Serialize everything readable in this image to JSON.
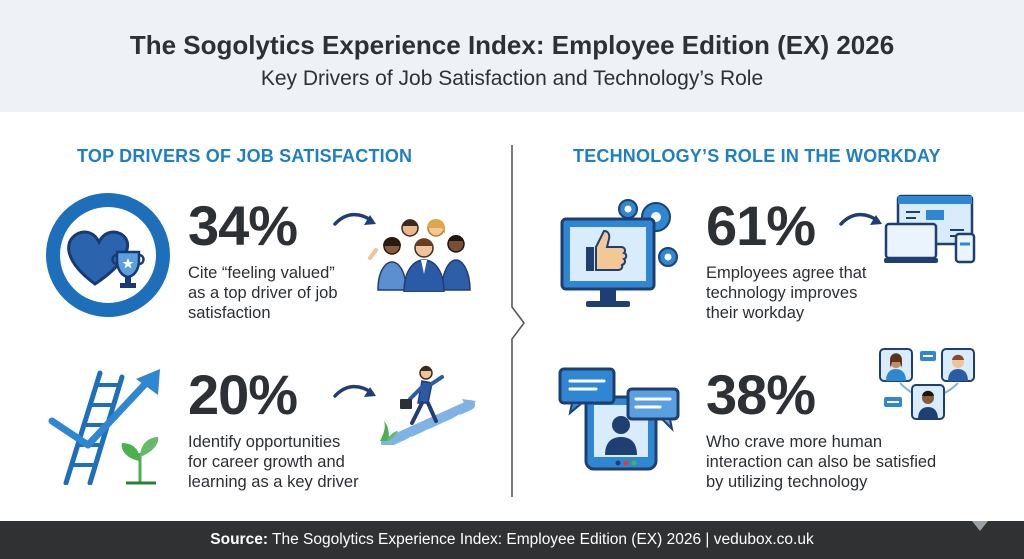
{
  "header": {
    "title": "The Sogolytics Experience Index: Employee Edition (EX) 2026",
    "subtitle": "Key Drivers of Job Satisfaction and Technology’s Role"
  },
  "left_section": {
    "heading": "TOP DRIVERS OF JOB SATISFACTION",
    "stats": [
      {
        "value": "34%",
        "description_lines": [
          "Cite “feeling valued”",
          "as a top driver of job",
          "satisfaction"
        ]
      },
      {
        "value": "20%",
        "description_lines": [
          "Identify opportunities",
          "for career growth and",
          "learning as a key driver"
        ]
      }
    ]
  },
  "right_section": {
    "heading": "TECHNOLOGY’S ROLE IN THE WORKDAY",
    "stats": [
      {
        "value": "61%",
        "description_lines": [
          "Employees agree that",
          "technology improves",
          "their workday"
        ]
      },
      {
        "value": "38%",
        "description_lines": [
          "Who crave more human",
          "interaction can also be satisfied",
          "by utilizing technology"
        ]
      }
    ]
  },
  "footer": {
    "source_label": "Source:",
    "source_text": "The Sogolytics Experience Index: Employee Edition (EX) 2026 | vedubox.co.uk"
  },
  "colors": {
    "accent_blue": "#1e7fc4",
    "navy": "#1f3f73",
    "dark_text": "#2d3035",
    "header_bg": "#eef1f5",
    "footer_bg": "#2f3133"
  },
  "icons": [
    "heart-trophy-ring-icon",
    "arrow-right-icon",
    "team-people-icon",
    "ladder-growth-arrow-icon",
    "climbing-person-icon",
    "monitor-thumbs-up-gears-icon",
    "devices-icon",
    "video-chat-icon",
    "remote-team-icon"
  ]
}
